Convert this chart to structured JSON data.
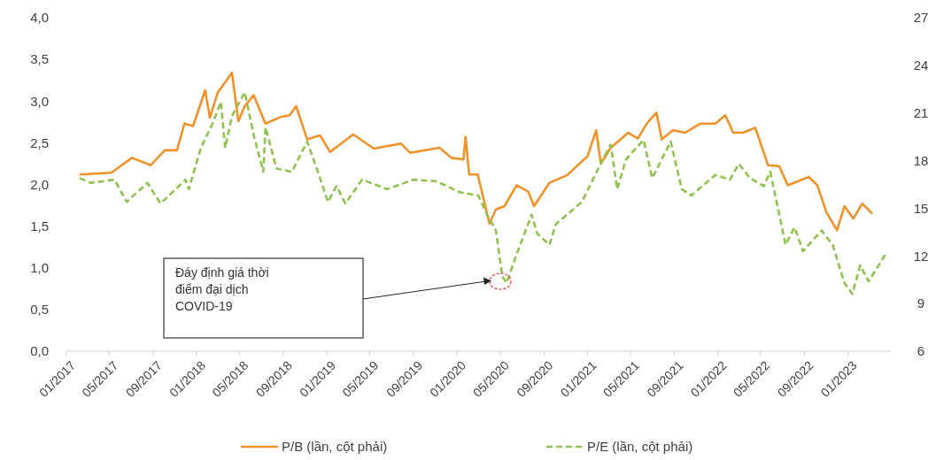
{
  "chart_data": {
    "type": "line",
    "xlim": [
      "2017-01-01",
      "2023-05-01"
    ],
    "xticks": [
      {
        "value": "2017-01-01",
        "label": "01/2017"
      },
      {
        "value": "2017-05-01",
        "label": "05/2017"
      },
      {
        "value": "2017-09-01",
        "label": "09/2017"
      },
      {
        "value": "2018-01-01",
        "label": "01/2018"
      },
      {
        "value": "2018-05-01",
        "label": "05/2018"
      },
      {
        "value": "2018-09-01",
        "label": "09/2018"
      },
      {
        "value": "2019-01-01",
        "label": "01/2019"
      },
      {
        "value": "2019-05-01",
        "label": "05/2019"
      },
      {
        "value": "2019-09-01",
        "label": "09/2019"
      },
      {
        "value": "2020-01-01",
        "label": "01/2020"
      },
      {
        "value": "2020-05-01",
        "label": "05/2020"
      },
      {
        "value": "2020-09-01",
        "label": "09/2020"
      },
      {
        "value": "2021-01-01",
        "label": "01/2021"
      },
      {
        "value": "2021-05-01",
        "label": "05/2021"
      },
      {
        "value": "2021-09-01",
        "label": "09/2021"
      },
      {
        "value": "2022-01-01",
        "label": "01/2022"
      },
      {
        "value": "2022-05-01",
        "label": "05/2022"
      },
      {
        "value": "2022-09-01",
        "label": "09/2022"
      },
      {
        "value": "2023-01-01",
        "label": "01/2023"
      }
    ],
    "ylim": [
      0,
      4
    ],
    "yticks": [
      {
        "value": 0,
        "label": "0,0"
      },
      {
        "value": 0.5,
        "label": "0,5"
      },
      {
        "value": 1,
        "label": "1,0"
      },
      {
        "value": 1.5,
        "label": "1,5"
      },
      {
        "value": 2,
        "label": "2,0"
      },
      {
        "value": 2.5,
        "label": "2,5"
      },
      {
        "value": 3,
        "label": "3,0"
      },
      {
        "value": 3.5,
        "label": "3,5"
      },
      {
        "value": 4,
        "label": "4,0"
      }
    ],
    "y2lim": [
      6,
      27
    ],
    "y2ticks": [
      6,
      9,
      12,
      15,
      18,
      21,
      24,
      27
    ],
    "grid": false,
    "legend": "bottom",
    "series": [
      {
        "name": "P/B (lần, cột phải)",
        "color": "#f0922a",
        "line_style": "solid",
        "x": [
          "2017-02-07",
          "2017-05-07",
          "2017-07-04",
          "2017-08-25",
          "2017-10-04",
          "2017-11-07",
          "2017-11-28",
          "2017-12-22",
          "2018-01-25",
          "2018-02-07",
          "2018-03-01",
          "2018-04-10",
          "2018-04-28",
          "2018-05-16",
          "2018-06-10",
          "2018-07-13",
          "2018-08-25",
          "2018-09-19",
          "2018-10-07",
          "2018-11-07",
          "2018-12-13",
          "2019-01-10",
          "2019-03-16",
          "2019-05-13",
          "2019-07-28",
          "2019-08-22",
          "2019-11-13",
          "2019-12-16",
          "2020-01-19",
          "2020-01-25",
          "2020-02-04",
          "2020-02-28",
          "2020-04-01",
          "2020-04-19",
          "2020-05-13",
          "2020-06-16",
          "2020-07-19",
          "2020-08-04",
          "2020-09-16",
          "2020-11-04",
          "2021-01-01",
          "2021-01-25",
          "2021-02-07",
          "2021-03-07",
          "2021-04-25",
          "2021-05-22",
          "2021-06-16",
          "2021-07-13",
          "2021-07-28",
          "2021-08-28",
          "2021-10-01",
          "2021-11-13",
          "2021-12-25",
          "2022-01-22",
          "2022-02-13",
          "2022-03-13",
          "2022-04-16",
          "2022-05-22",
          "2022-06-22",
          "2022-07-16",
          "2022-09-13",
          "2022-10-07",
          "2022-11-01",
          "2022-12-01",
          "2022-12-22",
          "2023-01-16",
          "2023-02-10",
          "2023-03-10"
        ],
        "values": [
          2.12,
          2.14,
          2.32,
          2.23,
          2.41,
          2.41,
          2.73,
          2.7,
          3.13,
          2.8,
          3.1,
          3.34,
          2.76,
          2.94,
          3.07,
          2.73,
          2.81,
          2.83,
          2.94,
          2.54,
          2.59,
          2.39,
          2.6,
          2.43,
          2.49,
          2.38,
          2.44,
          2.32,
          2.3,
          2.57,
          2.12,
          2.12,
          1.53,
          1.7,
          1.74,
          1.99,
          1.91,
          1.74,
          2.02,
          2.11,
          2.34,
          2.65,
          2.25,
          2.44,
          2.62,
          2.55,
          2.73,
          2.86,
          2.54,
          2.65,
          2.62,
          2.73,
          2.73,
          2.83,
          2.62,
          2.62,
          2.68,
          2.23,
          2.22,
          1.99,
          2.09,
          1.99,
          1.67,
          1.45,
          1.74,
          1.59,
          1.77,
          1.65
        ]
      },
      {
        "name": "P/E (lần, cột phải)",
        "color": "#92c050",
        "line_style": "dashed",
        "axis": "y2",
        "x": [
          "2017-02-07",
          "2017-03-10",
          "2017-05-16",
          "2017-06-19",
          "2017-08-16",
          "2017-09-22",
          "2017-12-01",
          "2017-12-10",
          "2018-01-13",
          "2018-02-16",
          "2018-03-10",
          "2018-03-22",
          "2018-04-10",
          "2018-05-16",
          "2018-06-10",
          "2018-07-07",
          "2018-07-13",
          "2018-08-13",
          "2018-09-25",
          "2018-11-07",
          "2018-12-10",
          "2019-01-04",
          "2019-01-28",
          "2019-02-22",
          "2019-04-10",
          "2019-06-19",
          "2019-09-01",
          "2019-11-04",
          "2020-01-10",
          "2020-03-01",
          "2020-03-25",
          "2020-04-19",
          "2020-05-07",
          "2020-05-19",
          "2020-06-16",
          "2020-07-28",
          "2020-08-13",
          "2020-09-16",
          "2020-10-04",
          "2020-12-16",
          "2021-02-13",
          "2021-03-07",
          "2021-03-25",
          "2021-04-19",
          "2021-06-07",
          "2021-07-01",
          "2021-08-22",
          "2021-09-22",
          "2021-10-19",
          "2021-12-25",
          "2022-02-04",
          "2022-03-01",
          "2022-04-01",
          "2022-05-10",
          "2022-05-28",
          "2022-07-10",
          "2022-08-04",
          "2022-08-28",
          "2022-10-19",
          "2022-11-19",
          "2022-12-22",
          "2023-01-13",
          "2023-02-04",
          "2023-02-28",
          "2023-04-16"
        ],
        "values": [
          16.9,
          16.6,
          16.8,
          15.4,
          16.6,
          15.3,
          16.8,
          16.2,
          18.8,
          20.4,
          21.7,
          18.8,
          20.8,
          22.3,
          19.6,
          17.3,
          20.1,
          17.5,
          17.3,
          19.2,
          17.1,
          15.4,
          16.4,
          15.3,
          16.8,
          16.2,
          16.8,
          16.7,
          16.0,
          15.8,
          14.6,
          13.6,
          10.7,
          10.3,
          12.1,
          14.6,
          13.4,
          12.7,
          14.0,
          15.4,
          18.1,
          19.0,
          16.2,
          18.1,
          19.3,
          16.9,
          19.2,
          16.2,
          15.8,
          17.1,
          16.8,
          17.8,
          16.9,
          16.4,
          17.3,
          12.7,
          13.8,
          12.3,
          13.6,
          12.7,
          10.3,
          9.6,
          11.4,
          10.4,
          12.1
        ]
      }
    ],
    "annotations": [
      "Đáy định giá thời điểm đại dịch COVID-19"
    ]
  }
}
